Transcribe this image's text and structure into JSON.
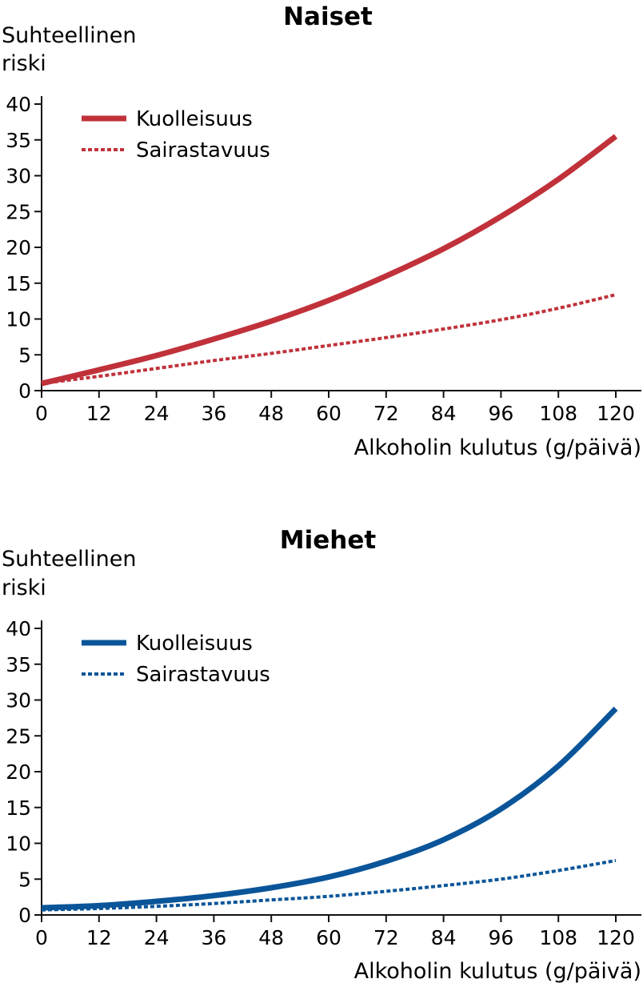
{
  "chart_data": [
    {
      "type": "line",
      "title": "Naiset",
      "ylabel_line1": "Suhteellinen",
      "ylabel_line2": "riski",
      "xlabel": "Alkoholin kulutus (g/päivä)",
      "xlim": [
        0,
        120
      ],
      "ylim": [
        0,
        40
      ],
      "x_ticks": [
        0,
        12,
        24,
        36,
        48,
        60,
        72,
        84,
        96,
        108,
        120
      ],
      "y_ticks": [
        0,
        5,
        10,
        15,
        20,
        25,
        30,
        35,
        40
      ],
      "grid": false,
      "legend_position": "top-left",
      "color": "#c0313a",
      "series": [
        {
          "name": "Kuolleisuus",
          "style": "solid",
          "x": [
            0,
            12,
            24,
            36,
            48,
            60,
            72,
            84,
            96,
            108,
            120
          ],
          "values": [
            1.0,
            2.9,
            4.9,
            7.2,
            9.7,
            12.6,
            16.0,
            19.8,
            24.3,
            29.5,
            35.5
          ]
        },
        {
          "name": "Sairastavuus",
          "style": "dotted",
          "x": [
            0,
            12,
            24,
            36,
            48,
            60,
            72,
            84,
            96,
            108,
            120
          ],
          "values": [
            1.0,
            2.0,
            3.1,
            4.2,
            5.2,
            6.3,
            7.4,
            8.6,
            9.9,
            11.5,
            13.4
          ]
        }
      ]
    },
    {
      "type": "line",
      "title": "Miehet",
      "ylabel_line1": "Suhteellinen",
      "ylabel_line2": "riski",
      "xlabel": "Alkoholin kulutus (g/päivä)",
      "xlim": [
        0,
        120
      ],
      "ylim": [
        0,
        40
      ],
      "x_ticks": [
        0,
        12,
        24,
        36,
        48,
        60,
        72,
        84,
        96,
        108,
        120
      ],
      "y_ticks": [
        0,
        5,
        10,
        15,
        20,
        25,
        30,
        35,
        40
      ],
      "grid": false,
      "legend_position": "top-left",
      "color": "#0a5599",
      "series": [
        {
          "name": "Kuolleisuus",
          "style": "solid",
          "x": [
            0,
            12,
            24,
            36,
            48,
            60,
            72,
            84,
            96,
            108,
            120
          ],
          "values": [
            1.0,
            1.3,
            1.9,
            2.7,
            3.8,
            5.3,
            7.5,
            10.5,
            14.8,
            20.8,
            28.8
          ]
        },
        {
          "name": "Sairastavuus",
          "style": "dotted",
          "x": [
            0,
            12,
            24,
            36,
            48,
            60,
            72,
            84,
            96,
            108,
            120
          ],
          "values": [
            0.7,
            0.9,
            1.2,
            1.6,
            2.1,
            2.6,
            3.3,
            4.1,
            5.0,
            6.2,
            7.6
          ]
        }
      ]
    }
  ]
}
